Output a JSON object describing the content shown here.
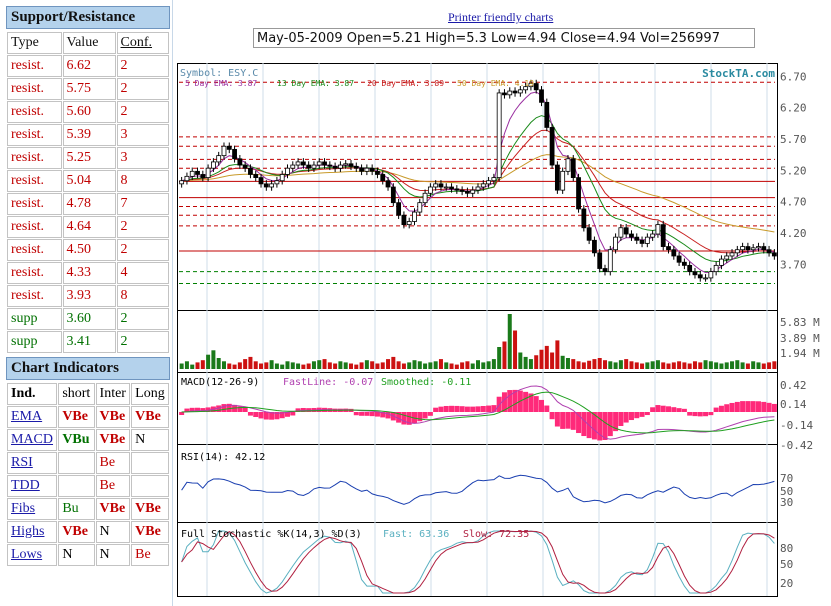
{
  "support_resistance": {
    "title": "Support/Resistance",
    "headers": {
      "type": "Type",
      "value": "Value",
      "conf": "Conf."
    },
    "rows": [
      {
        "type": "resist.",
        "value": "6.62",
        "conf": "2"
      },
      {
        "type": "resist.",
        "value": "5.75",
        "conf": "2"
      },
      {
        "type": "resist.",
        "value": "5.60",
        "conf": "2"
      },
      {
        "type": "resist.",
        "value": "5.39",
        "conf": "3"
      },
      {
        "type": "resist.",
        "value": "5.25",
        "conf": "3"
      },
      {
        "type": "resist.",
        "value": "5.04",
        "conf": "8"
      },
      {
        "type": "resist.",
        "value": "4.78",
        "conf": "7"
      },
      {
        "type": "resist.",
        "value": "4.64",
        "conf": "2"
      },
      {
        "type": "resist.",
        "value": "4.50",
        "conf": "2"
      },
      {
        "type": "resist.",
        "value": "4.33",
        "conf": "4"
      },
      {
        "type": "resist.",
        "value": "3.93",
        "conf": "8"
      },
      {
        "type": "supp",
        "value": "3.60",
        "conf": "2"
      },
      {
        "type": "supp",
        "value": "3.41",
        "conf": "2"
      }
    ]
  },
  "indicators": {
    "title": "Chart Indicators",
    "headers": {
      "ind": "Ind.",
      "short": "short",
      "inter": "Inter",
      "long": "Long"
    },
    "rows": [
      {
        "ind": "EMA",
        "short": "VBe",
        "inter": "VBe",
        "long": "VBe"
      },
      {
        "ind": "MACD",
        "short": "VBu",
        "inter": "VBe",
        "long": "N"
      },
      {
        "ind": "RSI",
        "short": "",
        "inter": "Be",
        "long": ""
      },
      {
        "ind": "TDD",
        "short": "",
        "inter": "Be",
        "long": ""
      },
      {
        "ind": "Fibs",
        "short": "Bu",
        "inter": "VBe",
        "long": "VBe"
      },
      {
        "ind": "Highs",
        "short": "VBe",
        "inter": "N",
        "long": "VBe"
      },
      {
        "ind": "Lows",
        "short": "N",
        "inter": "N",
        "long": "Be"
      }
    ]
  },
  "printer_link": "Printer friendly charts",
  "ohlc_text": "May-05-2009 Open=5.21 High=5.3 Low=4.94 Close=4.94 Vol=256997",
  "colors": {
    "up": "#1a7a1a",
    "down": "#cc1111",
    "ema5": "#9a2fa0",
    "ema13": "#1a8a1a",
    "ema20": "#c82020",
    "ema50": "#c89a2a",
    "resist": "#c00000",
    "supp": "#008000",
    "macd_fast": "#b040b0",
    "macd_slow": "#20a020",
    "hist": "#ff2a7a",
    "rsi": "#1a3fb0",
    "stoch_fast": "#5ab0c0",
    "stoch_slow": "#b02040"
  },
  "chart_data": {
    "type": "candlestick",
    "symbol_label": "Symbol: ESY.C",
    "watermark": "StockTA.com",
    "ema_labels": [
      "5 Day EMA: 3.87",
      "13 Day EMA: 3.87",
      "20 Day EMA: 3.89",
      "50 Day EMA: 4.19"
    ],
    "price_axis": {
      "ylim": [
        3.1,
        6.8
      ],
      "ticks": [
        "6.70",
        "6.20",
        "5.70",
        "5.20",
        "4.70",
        "4.20",
        "3.70"
      ]
    },
    "resistance_levels": [
      6.62,
      5.75,
      5.6,
      5.39,
      5.25,
      5.04,
      4.78,
      4.64,
      4.5,
      4.33,
      3.93
    ],
    "support_levels": [
      3.6,
      3.41
    ],
    "solid_levels": [
      5.04,
      4.78,
      3.93
    ],
    "closes": [
      5.05,
      5.12,
      5.2,
      5.15,
      5.1,
      5.25,
      5.35,
      5.45,
      5.6,
      5.55,
      5.4,
      5.3,
      5.25,
      5.15,
      5.1,
      5.0,
      4.95,
      5.0,
      5.05,
      5.15,
      5.25,
      5.3,
      5.35,
      5.3,
      5.25,
      5.3,
      5.35,
      5.3,
      5.28,
      5.25,
      5.3,
      5.32,
      5.28,
      5.25,
      5.2,
      5.25,
      5.2,
      5.15,
      5.05,
      4.95,
      4.7,
      4.5,
      4.35,
      4.4,
      4.55,
      4.7,
      4.85,
      4.95,
      5.0,
      4.95,
      4.95,
      4.92,
      4.9,
      4.88,
      4.85,
      4.9,
      4.95,
      5.0,
      5.05,
      5.1,
      6.45,
      6.42,
      6.48,
      6.45,
      6.5,
      6.55,
      6.6,
      6.5,
      6.3,
      5.9,
      5.3,
      4.9,
      5.2,
      5.4,
      5.1,
      4.6,
      4.3,
      4.1,
      3.9,
      3.65,
      3.6,
      3.95,
      4.15,
      4.3,
      4.2,
      4.15,
      4.1,
      4.05,
      4.15,
      4.2,
      4.35,
      4.0,
      3.95,
      3.85,
      3.75,
      3.7,
      3.6,
      3.55,
      3.5,
      3.5,
      3.6,
      3.7,
      3.8,
      3.85,
      3.9,
      3.95,
      4.0,
      3.95,
      3.98,
      4.0,
      3.95,
      3.9,
      3.85
    ],
    "volume_axis": {
      "ticks": [
        "5.83 M",
        "3.89 M",
        "1.94 M"
      ]
    },
    "volume_index": [
      10,
      14,
      8,
      12,
      16,
      26,
      34,
      20,
      14,
      10,
      8,
      12,
      18,
      22,
      14,
      10,
      12,
      16,
      10,
      8,
      14,
      12,
      10,
      8,
      10,
      14,
      16,
      18,
      12,
      10,
      14,
      12,
      10,
      8,
      12,
      16,
      14,
      10,
      12,
      18,
      22,
      14,
      10,
      12,
      16,
      14,
      10,
      12,
      14,
      18,
      12,
      10,
      8,
      12,
      14,
      10,
      16,
      12,
      14,
      18,
      40,
      50,
      100,
      70,
      30,
      22,
      18,
      25,
      35,
      42,
      30,
      52,
      24,
      20,
      18,
      14,
      12,
      15,
      18,
      20,
      16,
      14,
      12,
      16,
      18,
      14,
      12,
      10,
      12,
      14,
      16,
      12,
      10,
      12,
      14,
      12,
      10,
      14,
      12,
      16,
      14,
      12,
      10,
      12,
      14,
      16,
      12,
      10,
      14,
      12,
      10,
      12,
      14
    ],
    "macd": {
      "label": "MACD(12-26-9)",
      "fast_label": "FastLine: -0.07",
      "slow_label": "Smoothed: -0.11",
      "ticks": [
        "0.42",
        "0.14",
        "-0.14",
        "-0.42"
      ]
    },
    "rsi": {
      "label": "RSI(14): 42.12",
      "ticks": [
        "70",
        "50",
        "30"
      ]
    },
    "stochastic": {
      "label": "Full Stochastic %K(14,3) %D(3)",
      "fast_label": "Fast: 63.36",
      "slow_label": "Slow: 72.35",
      "ticks": [
        "80",
        "50",
        "20"
      ]
    }
  }
}
